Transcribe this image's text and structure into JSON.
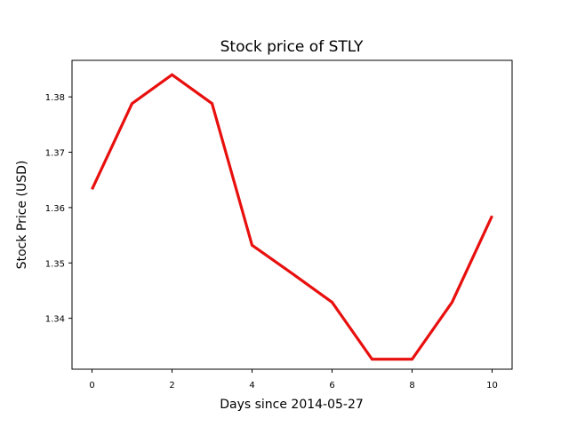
{
  "chart_data": {
    "type": "line",
    "title": "Stock price of STLY",
    "xlabel": "Days since 2014-05-27",
    "ylabel": "Stock Price (USD)",
    "x": [
      0,
      1,
      2,
      3,
      4,
      5,
      6,
      7,
      8,
      9,
      10
    ],
    "series": [
      {
        "values": [
          1.3633,
          1.3788,
          1.384,
          1.3788,
          1.3532,
          1.3481,
          1.3429,
          1.3326,
          1.3326,
          1.3429,
          1.3585
        ]
      }
    ],
    "xticks": [
      0,
      2,
      4,
      6,
      8,
      10
    ],
    "yticks": [
      1.34,
      1.35,
      1.36,
      1.37,
      1.38
    ],
    "ytick_labels": [
      "1.34",
      "1.35",
      "1.36",
      "1.37",
      "1.38"
    ],
    "xlim": [
      -0.5,
      10.5
    ],
    "ylim": [
      1.3308,
      1.3866
    ],
    "grid": false,
    "line_color": "#e8100e"
  }
}
